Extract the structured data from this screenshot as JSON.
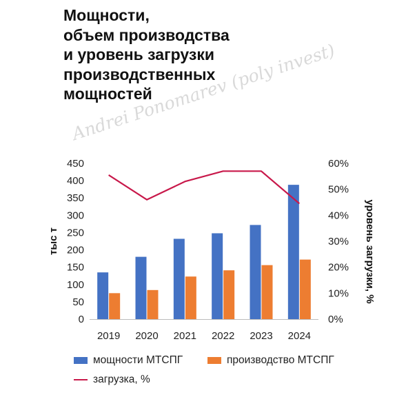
{
  "title_lines": [
    "Мощности,",
    "объем производства",
    "и уровень загрузки",
    "производственных",
    "мощностей"
  ],
  "watermark": "Andrei Ponomarev (poly invest)",
  "colors": {
    "capacity": "#4472c4",
    "production": "#ed7d31",
    "load": "#c8184a",
    "axis": "#bbbbbb"
  },
  "chart_data": {
    "type": "bar",
    "categories": [
      "2019",
      "2020",
      "2021",
      "2022",
      "2023",
      "2024"
    ],
    "series": [
      {
        "name": "мощности МТСПГ",
        "kind": "bar",
        "axis": "left",
        "values": [
          135,
          180,
          232,
          248,
          272,
          388
        ]
      },
      {
        "name": "производство МТСПГ",
        "kind": "bar",
        "axis": "left",
        "values": [
          75,
          84,
          123,
          141,
          156,
          172
        ]
      },
      {
        "name": "загрузка, %",
        "kind": "line",
        "axis": "right",
        "values": [
          55.5,
          46,
          53,
          57,
          57,
          44.5
        ]
      }
    ],
    "ylabel": "тыс т",
    "ylim": [
      0,
      450
    ],
    "yticks": [
      "0",
      "50",
      "100",
      "150",
      "200",
      "250",
      "300",
      "350",
      "400",
      "450"
    ],
    "y2label": "уровень загрузки, %",
    "y2lim": [
      0,
      60
    ],
    "y2ticks": [
      "0%",
      "10%",
      "20%",
      "30%",
      "40%",
      "50%",
      "60%"
    ],
    "grid": false,
    "legend": "bottom"
  }
}
